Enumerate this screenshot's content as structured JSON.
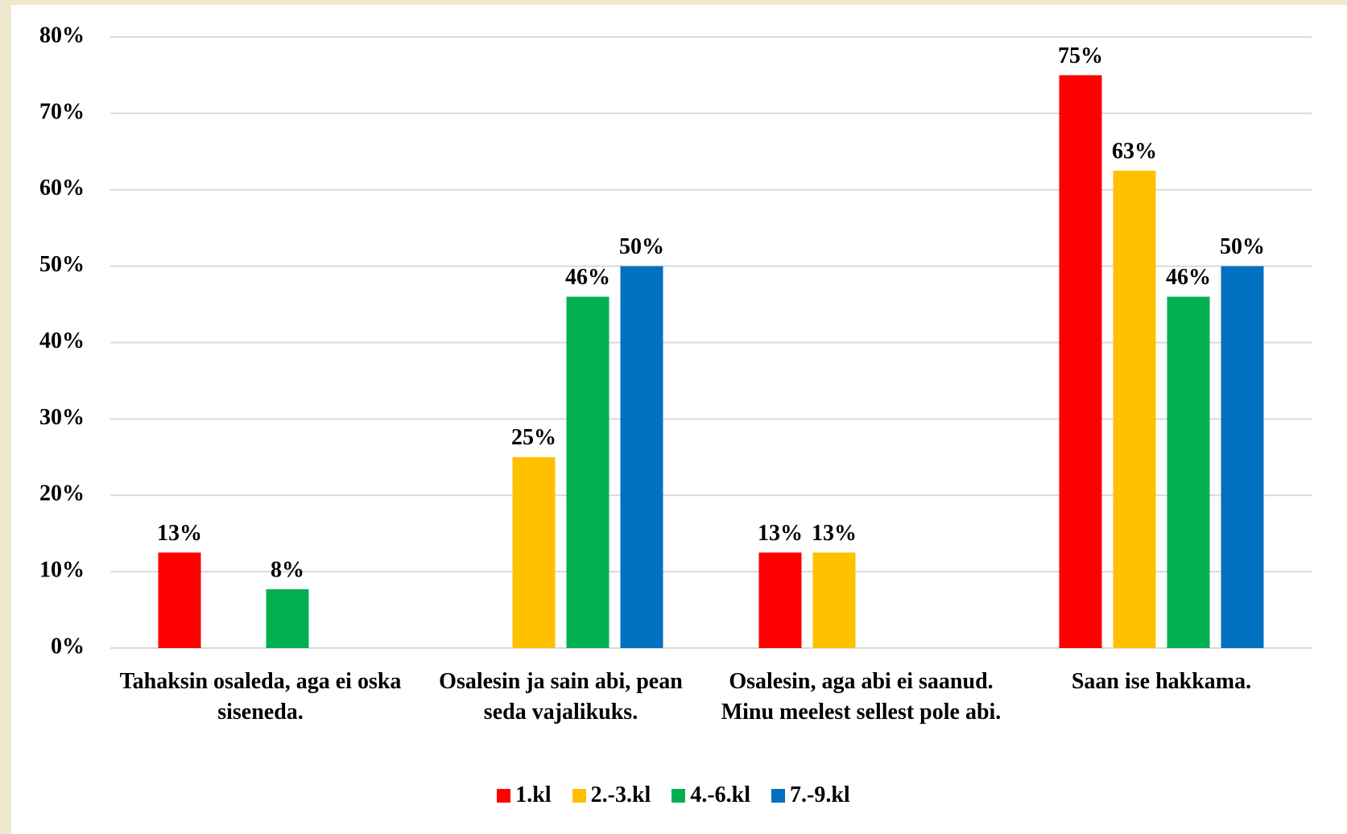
{
  "chart_data": {
    "type": "bar",
    "categories": [
      "Tahaksin osaleda, aga ei oska siseneda.",
      "Osalesin ja sain abi, pean seda vajalikuks.",
      "Osalesin, aga abi ei saanud. Minu meelest sellest pole abi.",
      "Saan ise hakkama."
    ],
    "series": [
      {
        "name": "1.kl",
        "color": "#ff0000",
        "values": [
          12.5,
          null,
          12.5,
          75
        ],
        "value_labels": [
          "13%",
          null,
          "13%",
          "75%"
        ]
      },
      {
        "name": "2.-3.kl",
        "color": "#ffc000",
        "values": [
          null,
          25,
          12.5,
          62.5
        ],
        "value_labels": [
          null,
          "25%",
          "13%",
          "63%"
        ]
      },
      {
        "name": "4.-6.kl",
        "color": "#00b050",
        "values": [
          7.7,
          46,
          null,
          46
        ],
        "value_labels": [
          "8%",
          "46%",
          null,
          "46%"
        ]
      },
      {
        "name": "7.-9.kl",
        "color": "#0070c0",
        "values": [
          null,
          50,
          null,
          50
        ],
        "value_labels": [
          null,
          "50%",
          null,
          "50%"
        ]
      }
    ],
    "ylim": [
      0,
      80
    ],
    "yticks": [
      {
        "value": 0,
        "label": "0%"
      },
      {
        "value": 10,
        "label": "10%"
      },
      {
        "value": 20,
        "label": "20%"
      },
      {
        "value": 30,
        "label": "30%"
      },
      {
        "value": 40,
        "label": "40%"
      },
      {
        "value": 50,
        "label": "50%"
      },
      {
        "value": 60,
        "label": "60%"
      },
      {
        "value": 70,
        "label": "70%"
      },
      {
        "value": 80,
        "label": "80%"
      }
    ],
    "grid": true,
    "legend": "bottom"
  }
}
